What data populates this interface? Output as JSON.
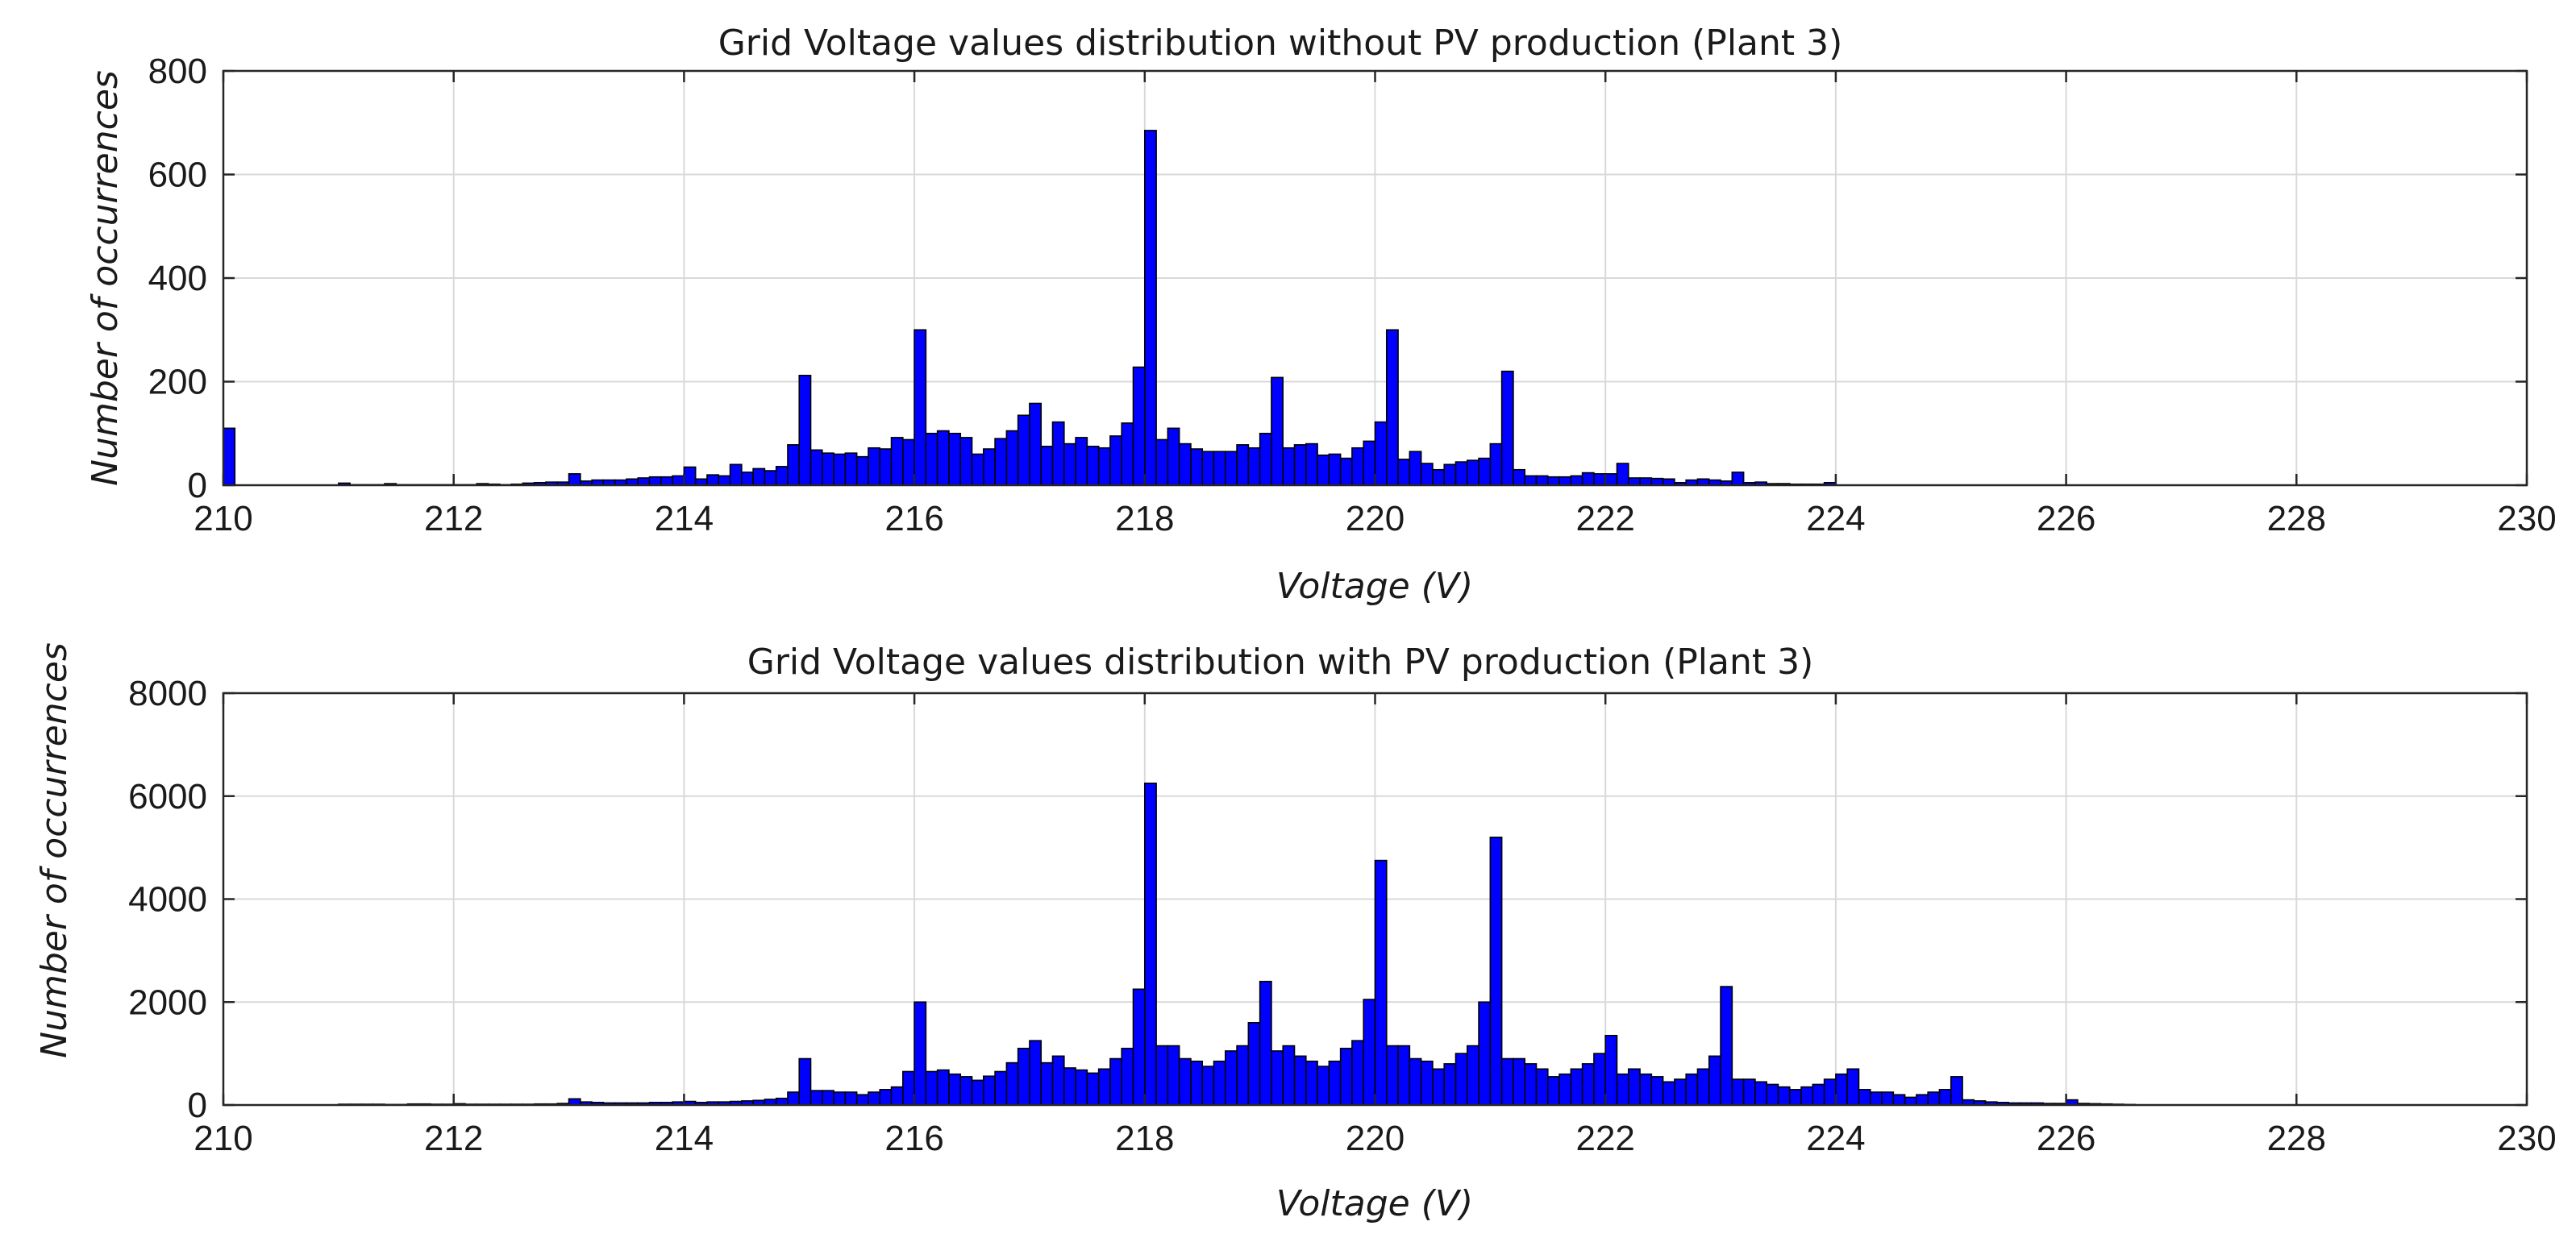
{
  "chart_data": [
    {
      "type": "bar",
      "title": "Grid Voltage values distribution without PV production (Plant 3)",
      "xlabel": "Voltage (V)",
      "ylabel": "Number of occurrences",
      "xlim": [
        210,
        230
      ],
      "ylim": [
        0,
        800
      ],
      "bin_width": 0.1,
      "grid": true,
      "bar_color": "#0000ff",
      "edge_color": "#000000",
      "xticks": [
        "210",
        "212",
        "214",
        "216",
        "218",
        "220",
        "222",
        "224",
        "226",
        "228",
        "230"
      ],
      "yticks": [
        "0",
        "200",
        "400",
        "600",
        "800"
      ],
      "x": [
        210.0,
        210.1,
        210.2,
        210.3,
        210.4,
        210.5,
        210.6,
        210.7,
        210.8,
        210.9,
        211.0,
        211.1,
        211.2,
        211.3,
        211.4,
        211.5,
        211.6,
        211.7,
        211.8,
        211.9,
        212.0,
        212.1,
        212.2,
        212.3,
        212.4,
        212.5,
        212.6,
        212.7,
        212.8,
        212.9,
        213.0,
        213.1,
        213.2,
        213.3,
        213.4,
        213.5,
        213.6,
        213.7,
        213.8,
        213.9,
        214.0,
        214.1,
        214.2,
        214.3,
        214.4,
        214.5,
        214.6,
        214.7,
        214.8,
        214.9,
        215.0,
        215.1,
        215.2,
        215.3,
        215.4,
        215.5,
        215.6,
        215.7,
        215.8,
        215.9,
        216.0,
        216.1,
        216.2,
        216.3,
        216.4,
        216.5,
        216.6,
        216.7,
        216.8,
        216.9,
        217.0,
        217.1,
        217.2,
        217.3,
        217.4,
        217.5,
        217.6,
        217.7,
        217.8,
        217.9,
        218.0,
        218.1,
        218.2,
        218.3,
        218.4,
        218.5,
        218.6,
        218.7,
        218.8,
        218.9,
        219.0,
        219.1,
        219.2,
        219.3,
        219.4,
        219.5,
        219.6,
        219.7,
        219.8,
        219.9,
        220.0,
        220.1,
        220.2,
        220.3,
        220.4,
        220.5,
        220.6,
        220.7,
        220.8,
        220.9,
        221.0,
        221.1,
        221.2,
        221.3,
        221.4,
        221.5,
        221.6,
        221.7,
        221.8,
        221.9,
        222.0,
        222.1,
        222.2,
        222.3,
        222.4,
        222.5,
        222.6,
        222.7,
        222.8,
        222.9,
        223.0,
        223.1,
        223.2,
        223.3,
        223.4,
        223.5,
        223.6,
        223.7,
        223.8,
        223.9
      ],
      "values": [
        110,
        0,
        0,
        0,
        0,
        0,
        0,
        0,
        0,
        0,
        4,
        1,
        1,
        1,
        3,
        1,
        1,
        1,
        1,
        1,
        1,
        1,
        3,
        2,
        1,
        2,
        4,
        5,
        6,
        6,
        22,
        8,
        10,
        10,
        10,
        12,
        14,
        16,
        16,
        18,
        35,
        12,
        20,
        18,
        40,
        25,
        32,
        28,
        36,
        78,
        212,
        68,
        62,
        60,
        62,
        55,
        72,
        70,
        92,
        88,
        300,
        100,
        105,
        100,
        92,
        60,
        70,
        90,
        105,
        135,
        158,
        75,
        122,
        80,
        92,
        75,
        72,
        95,
        120,
        228,
        685,
        88,
        110,
        80,
        70,
        65,
        65,
        65,
        78,
        72,
        100,
        208,
        72,
        78,
        80,
        58,
        60,
        52,
        72,
        85,
        122,
        300,
        50,
        65,
        42,
        30,
        40,
        45,
        48,
        52,
        80,
        220,
        30,
        18,
        18,
        16,
        16,
        18,
        24,
        22,
        22,
        42,
        14,
        14,
        13,
        12,
        5,
        10,
        12,
        10,
        8,
        25,
        5,
        6,
        3,
        3,
        2,
        2,
        2,
        5
      ]
    },
    {
      "type": "bar",
      "title": "Grid Voltage values distribution with PV production (Plant 3)",
      "xlabel": "Voltage (V)",
      "ylabel": "Number of occurrences",
      "xlim": [
        210,
        230
      ],
      "ylim": [
        0,
        8000
      ],
      "bin_width": 0.1,
      "grid": true,
      "bar_color": "#0000ff",
      "edge_color": "#000000",
      "xticks": [
        "210",
        "212",
        "214",
        "216",
        "218",
        "220",
        "222",
        "224",
        "226",
        "228",
        "230"
      ],
      "yticks": [
        "0",
        "2000",
        "4000",
        "6000",
        "8000"
      ],
      "x": [
        211.0,
        211.1,
        211.2,
        211.3,
        211.4,
        211.5,
        211.6,
        211.7,
        211.8,
        211.9,
        212.0,
        212.1,
        212.2,
        212.3,
        212.4,
        212.5,
        212.6,
        212.7,
        212.8,
        212.9,
        213.0,
        213.1,
        213.2,
        213.3,
        213.4,
        213.5,
        213.6,
        213.7,
        213.8,
        213.9,
        214.0,
        214.1,
        214.2,
        214.3,
        214.4,
        214.5,
        214.6,
        214.7,
        214.8,
        214.9,
        215.0,
        215.1,
        215.2,
        215.3,
        215.4,
        215.5,
        215.6,
        215.7,
        215.8,
        215.9,
        216.0,
        216.1,
        216.2,
        216.3,
        216.4,
        216.5,
        216.6,
        216.7,
        216.8,
        216.9,
        217.0,
        217.1,
        217.2,
        217.3,
        217.4,
        217.5,
        217.6,
        217.7,
        217.8,
        217.9,
        218.0,
        218.1,
        218.2,
        218.3,
        218.4,
        218.5,
        218.6,
        218.7,
        218.8,
        218.9,
        219.0,
        219.1,
        219.2,
        219.3,
        219.4,
        219.5,
        219.6,
        219.7,
        219.8,
        219.9,
        220.0,
        220.1,
        220.2,
        220.3,
        220.4,
        220.5,
        220.6,
        220.7,
        220.8,
        220.9,
        221.0,
        221.1,
        221.2,
        221.3,
        221.4,
        221.5,
        221.6,
        221.7,
        221.8,
        221.9,
        222.0,
        222.1,
        222.2,
        222.3,
        222.4,
        222.5,
        222.6,
        222.7,
        222.8,
        222.9,
        223.0,
        223.1,
        223.2,
        223.3,
        223.4,
        223.5,
        223.6,
        223.7,
        223.8,
        223.9,
        224.0,
        224.1,
        224.2,
        224.3,
        224.4,
        224.5,
        224.6,
        224.7,
        224.8,
        224.9,
        225.0,
        225.1,
        225.2,
        225.3,
        225.4,
        225.5,
        225.6,
        225.7,
        225.8,
        225.9,
        226.0,
        226.1,
        226.2,
        226.3,
        226.4,
        226.5
      ],
      "values": [
        15,
        15,
        15,
        15,
        10,
        10,
        20,
        20,
        15,
        15,
        25,
        15,
        15,
        15,
        15,
        15,
        15,
        20,
        20,
        30,
        120,
        60,
        50,
        40,
        40,
        40,
        40,
        50,
        50,
        60,
        70,
        50,
        60,
        60,
        70,
        80,
        90,
        110,
        130,
        250,
        900,
        280,
        280,
        250,
        250,
        200,
        250,
        300,
        350,
        650,
        2000,
        650,
        680,
        600,
        550,
        480,
        560,
        650,
        820,
        1100,
        1250,
        820,
        950,
        720,
        680,
        620,
        700,
        900,
        1100,
        2250,
        6250,
        1150,
        1150,
        900,
        850,
        750,
        850,
        1050,
        1150,
        1600,
        2400,
        1050,
        1150,
        950,
        850,
        750,
        850,
        1100,
        1250,
        2050,
        4750,
        1150,
        1150,
        900,
        850,
        700,
        800,
        1000,
        1150,
        2000,
        5200,
        900,
        900,
        800,
        700,
        550,
        600,
        700,
        800,
        1000,
        1350,
        600,
        700,
        600,
        550,
        450,
        500,
        600,
        700,
        950,
        2300,
        500,
        500,
        450,
        400,
        350,
        300,
        350,
        400,
        500,
        600,
        700,
        300,
        250,
        250,
        200,
        150,
        200,
        250,
        300,
        550,
        100,
        80,
        60,
        50,
        40,
        40,
        40,
        30,
        30,
        100,
        30,
        25,
        20,
        15,
        10
      ]
    }
  ]
}
